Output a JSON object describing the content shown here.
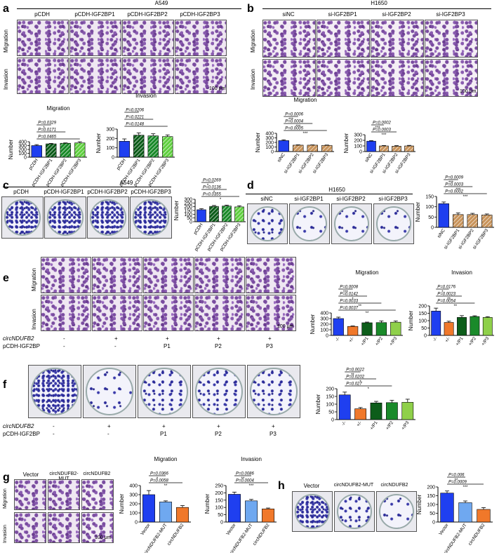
{
  "panels": {
    "a": {
      "letter": "a",
      "cell": "A549",
      "headers": [
        "pCDH",
        "pCDH-IGF2BP1",
        "pCDH-IGF2BP2",
        "pCDH-IGF2BP3"
      ],
      "rows": [
        "Migration",
        "Invasion"
      ],
      "scale": "100 μm"
    },
    "b": {
      "letter": "b",
      "cell": "H1650",
      "headers": [
        "siNC",
        "si-IGF2BP1",
        "si-IGF2BP2",
        "si-IGF2BP3"
      ],
      "rows": [
        "Migration",
        "Invasion"
      ],
      "scale": "100 μm"
    },
    "c": {
      "letter": "c",
      "cell": "A549",
      "headers": [
        "pCDH",
        "pCDH-IGF2BP1",
        "pCDH-IGF2BP2",
        "pCDH-IGF2BP3"
      ]
    },
    "d": {
      "letter": "d",
      "cell": "H1650",
      "headers": [
        "siNC",
        "si-IGF2BP1",
        "si-IGF2BP2",
        "si-IGF2BP3"
      ]
    },
    "e": {
      "letter": "e",
      "rows": [
        "Migration",
        "Invasion"
      ],
      "row_circ": "circNDUFB2",
      "row_pcdh": "pCDH-IGF2BP",
      "circ_vals": [
        "-",
        "+",
        "+",
        "+",
        "+"
      ],
      "pcdh_vals": [
        "-",
        "-",
        "P1",
        "P2",
        "P3"
      ],
      "scale": "100 μm"
    },
    "f": {
      "letter": "f",
      "row_circ": "circNDUFB2",
      "row_pcdh": "pCDH-IGF2BP",
      "circ_vals": [
        "-",
        "+",
        "+",
        "+",
        "+"
      ],
      "pcdh_vals": [
        "-",
        "-",
        "P1",
        "P2",
        "P3"
      ]
    },
    "g": {
      "letter": "g",
      "headers": [
        "Vector",
        "circNDUFB2-MUT",
        "circNDUFB2"
      ],
      "rows": [
        "Migration",
        "Invasion"
      ],
      "scale": "100 μm"
    },
    "h": {
      "letter": "h",
      "headers": [
        "Vector",
        "circNDUFB2-MUT",
        "circNDUFB2"
      ]
    }
  },
  "chart_data": [
    {
      "id": "a-mig",
      "type": "bar",
      "title": "Migration",
      "ylabel": "Number",
      "ylim": [
        0,
        400
      ],
      "yticks": [
        0,
        100,
        200,
        300,
        400
      ],
      "categories": [
        "pCDH",
        "pCDH-IGF2BP1",
        "pCDH-IGF2BP2",
        "pCDH-IGF2BP3"
      ],
      "values": [
        300,
        345,
        360,
        370
      ],
      "errors": [
        25,
        12,
        10,
        30
      ],
      "colors": [
        "#1f3ff0",
        "#0d5d1a",
        "#1a8a2a",
        "#5fcf3f"
      ],
      "hatch": [
        false,
        true,
        true,
        true
      ],
      "annotations": [
        "P=0.0329",
        "P=0.0171",
        "P=0.0465"
      ],
      "stars": [
        "*",
        "",
        ""
      ]
    },
    {
      "id": "a-inv",
      "type": "bar",
      "title": "Invasion",
      "ylabel": "Number",
      "ylim": [
        0,
        300
      ],
      "yticks": [
        0,
        100,
        200,
        300
      ],
      "categories": [
        "pCDH",
        "pCDH-IGF2BP1",
        "pCDH-IGF2BP2",
        "pCDH-IGF2BP3"
      ],
      "values": [
        170,
        235,
        228,
        220
      ],
      "errors": [
        25,
        25,
        22,
        18
      ],
      "colors": [
        "#1f3ff0",
        "#0d5d1a",
        "#1a8a2a",
        "#5fcf3f"
      ],
      "hatch": [
        false,
        true,
        true,
        true
      ],
      "annotations": [
        "P=0.0206",
        "P=0.0221",
        "P=0.0148"
      ],
      "stars": [
        "",
        "",
        ""
      ]
    },
    {
      "id": "b-mig",
      "type": "bar",
      "title": "Migration",
      "ylabel": "Number",
      "ylim": [
        0,
        400
      ],
      "yticks": [
        0,
        100,
        200,
        300,
        400
      ],
      "categories": [
        "siNC",
        "si-IGF2BP1",
        "si-IGF2BP2",
        "si-IGF2BP3"
      ],
      "values": [
        240,
        140,
        140,
        135
      ],
      "errors": [
        18,
        8,
        6,
        8
      ],
      "colors": [
        "#1f3ff0",
        "#c8935a",
        "#c8935a",
        "#c8935a"
      ],
      "hatch": [
        false,
        true,
        true,
        true
      ],
      "annotations": [
        "P=0.0006",
        "P=0.0004",
        "P=0.0005"
      ],
      "stars": [
        "***",
        "***",
        "***"
      ]
    },
    {
      "id": "b-inv",
      "type": "bar",
      "title": "",
      "ylabel": "Number",
      "ylim": [
        0,
        300
      ],
      "yticks": [
        0,
        100,
        200,
        300
      ],
      "categories": [
        "siNC",
        "si-IGF2BP1",
        "si-IGF2BP2",
        "si-IGF2BP3"
      ],
      "values": [
        185,
        100,
        95,
        100
      ],
      "errors": [
        10,
        8,
        10,
        10
      ],
      "colors": [
        "#1f3ff0",
        "#c8935a",
        "#c8935a",
        "#c8935a"
      ],
      "hatch": [
        false,
        true,
        true,
        true
      ],
      "annotations": [
        "P=0.0002",
        "P=0.0003"
      ],
      "stars": [
        "***",
        "***"
      ]
    },
    {
      "id": "c-col",
      "type": "bar",
      "title": "",
      "ylabel": "Number",
      "ylim": [
        0,
        300
      ],
      "yticks": [
        0,
        50,
        100,
        150,
        200,
        250,
        300
      ],
      "categories": [
        "pCDH",
        "pCDH-IGF2BP1",
        "pCDH-IGF2BP2",
        "pCDH-IGF2BP3"
      ],
      "values": [
        160,
        205,
        210,
        198
      ],
      "errors": [
        15,
        12,
        12,
        15
      ],
      "colors": [
        "#1f3ff0",
        "#0d5d1a",
        "#1a8a2a",
        "#5fcf3f"
      ],
      "hatch": [
        false,
        true,
        true,
        true
      ],
      "annotations": [
        "P=0.0269",
        "P=0.0136",
        "P=0.0355"
      ],
      "stars": [
        "*",
        "*",
        "*"
      ]
    },
    {
      "id": "d-col",
      "type": "bar",
      "title": "",
      "ylabel": "Number",
      "ylim": [
        0,
        150
      ],
      "yticks": [
        0,
        50,
        100,
        150
      ],
      "categories": [
        "siNC",
        "si-IGF2BP1",
        "si-IGF2BP2",
        "si-IGF2BP3"
      ],
      "values": [
        115,
        62,
        62,
        60
      ],
      "errors": [
        8,
        8,
        6,
        5
      ],
      "colors": [
        "#1f3ff0",
        "#c8935a",
        "#c8935a",
        "#c8935a"
      ],
      "hatch": [
        false,
        true,
        true,
        true
      ],
      "annotations": [
        "P=0.0009",
        "P=0.0003",
        "P=0.0002"
      ],
      "stars": [
        "***",
        "***",
        "***"
      ]
    },
    {
      "id": "e-mig",
      "type": "bar",
      "title": "Migration",
      "ylabel": "Number",
      "ylim": [
        0,
        400
      ],
      "yticks": [
        0,
        100,
        200,
        300,
        400
      ],
      "categories": [
        "-/-",
        "+/-",
        "+/P1",
        "+/P2",
        "+/P3"
      ],
      "values": [
        300,
        160,
        225,
        228,
        235
      ],
      "errors": [
        25,
        8,
        12,
        30,
        22
      ],
      "colors": [
        "#1f3ff0",
        "#f0782a",
        "#0d5d1a",
        "#1a8a2a",
        "#8fd04a"
      ],
      "hatch": [
        false,
        false,
        false,
        false,
        false
      ],
      "annotations": [
        "P=0.0008",
        "P=0.0142",
        "P=0.0033",
        "P=0.0037"
      ],
      "stars": [
        "***",
        "*",
        "**",
        "**"
      ]
    },
    {
      "id": "e-inv",
      "type": "bar",
      "title": "Invasion",
      "ylabel": "Number",
      "ylim": [
        0,
        200
      ],
      "yticks": [
        0,
        50,
        100,
        150,
        200
      ],
      "categories": [
        "-/-",
        "+/-",
        "+/P1",
        "+/P2",
        "+/P3"
      ],
      "values": [
        165,
        88,
        122,
        128,
        122
      ],
      "errors": [
        20,
        8,
        12,
        5,
        5
      ],
      "colors": [
        "#1f3ff0",
        "#f0782a",
        "#0d5d1a",
        "#1a8a2a",
        "#8fd04a"
      ],
      "hatch": [
        false,
        false,
        false,
        false,
        false
      ],
      "annotations": [
        "P=0.0176",
        "P=0.0023",
        "P=0.0054"
      ],
      "stars": [
        "*",
        "**",
        "**"
      ]
    },
    {
      "id": "f-col",
      "type": "bar",
      "title": "",
      "ylabel": "Number",
      "ylim": [
        0,
        200
      ],
      "yticks": [
        0,
        50,
        100,
        150,
        200
      ],
      "categories": [
        "-/-",
        "+/-",
        "+/P1",
        "+/P2",
        "+/P3"
      ],
      "values": [
        160,
        70,
        108,
        110,
        112
      ],
      "errors": [
        18,
        8,
        10,
        15,
        20
      ],
      "colors": [
        "#1f3ff0",
        "#f0782a",
        "#0d5d1a",
        "#1a8a2a",
        "#8fd04a"
      ],
      "hatch": [
        false,
        false,
        false,
        false,
        false
      ],
      "annotations": [
        "P=0.0022",
        "P=0.0202",
        "P=0.027"
      ],
      "stars": [
        "**",
        "*",
        "*"
      ]
    },
    {
      "id": "g-mig",
      "type": "bar",
      "title": "Migration",
      "ylabel": "Number",
      "ylim": [
        0,
        400
      ],
      "yticks": [
        0,
        100,
        200,
        300,
        400
      ],
      "categories": [
        "Vector",
        "circNDUFB2-MUT",
        "circNDUFB2"
      ],
      "values": [
        300,
        220,
        160
      ],
      "errors": [
        45,
        12,
        20
      ],
      "colors": [
        "#1f3ff0",
        "#6fa8f0",
        "#f0782a"
      ],
      "hatch": [
        false,
        false,
        false
      ],
      "annotations": [
        "P=0.0366",
        "P=0.0058"
      ],
      "stars": [
        "*",
        "**"
      ]
    },
    {
      "id": "g-inv",
      "type": "bar",
      "title": "Invasion",
      "ylabel": "Number",
      "ylim": [
        0,
        250
      ],
      "yticks": [
        0,
        50,
        100,
        150,
        200,
        250
      ],
      "categories": [
        "Vector",
        "circNDUFB2-MUT",
        "circNDUFB2"
      ],
      "values": [
        190,
        145,
        90
      ],
      "errors": [
        15,
        10,
        6
      ],
      "colors": [
        "#1f3ff0",
        "#6fa8f0",
        "#f0782a"
      ],
      "hatch": [
        false,
        false,
        false
      ],
      "annotations": [
        "P=0.0086",
        "P=0.0004"
      ],
      "stars": [
        "**",
        "***"
      ]
    },
    {
      "id": "h-col",
      "type": "bar",
      "title": "",
      "ylabel": "Number",
      "ylim": [
        0,
        200
      ],
      "yticks": [
        0,
        50,
        100,
        150,
        200
      ],
      "categories": [
        "Vector",
        "circNDUFB2-MUT",
        "circNDUFB2"
      ],
      "values": [
        165,
        110,
        72
      ],
      "errors": [
        12,
        10,
        10
      ],
      "colors": [
        "#1f3ff0",
        "#6fa8f0",
        "#f0782a"
      ],
      "hatch": [
        false,
        false,
        false
      ],
      "annotations": [
        "P=0.006",
        "P=0.0009"
      ],
      "stars": [
        "**",
        "***"
      ]
    }
  ]
}
